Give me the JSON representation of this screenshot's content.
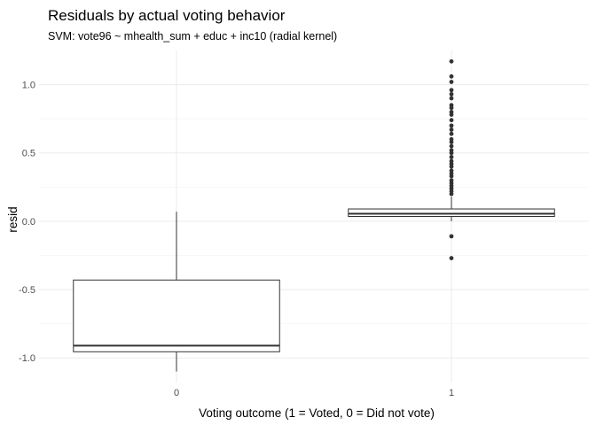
{
  "chart_data": {
    "type": "boxplot",
    "title": "Residuals by actual voting behavior",
    "subtitle": "SVM: vote96 ~ mhealth_sum + educ + inc10 (radial kernel)",
    "xlabel": "Voting outcome (1 = Voted, 0 = Did not vote)",
    "ylabel": "resid",
    "categories": [
      "0",
      "1"
    ],
    "ylim": [
      -1.18,
      1.25
    ],
    "yticks": [
      -1.0,
      -0.5,
      0.0,
      0.5,
      1.0
    ],
    "ytick_labels": [
      "-1.0",
      "-0.5",
      "0.0",
      "0.5",
      "1.0"
    ],
    "grid": true,
    "boxes": [
      {
        "category": "0",
        "whisker_low": -1.1,
        "q1": -0.955,
        "median": -0.91,
        "q3": -0.43,
        "whisker_high": 0.07,
        "outliers": []
      },
      {
        "category": "1",
        "whisker_low": 0.0,
        "q1": 0.035,
        "median": 0.055,
        "q3": 0.09,
        "whisker_high": 0.18,
        "outliers": [
          -0.27,
          -0.11,
          0.2,
          0.22,
          0.24,
          0.26,
          0.28,
          0.3,
          0.33,
          0.35,
          0.37,
          0.4,
          0.42,
          0.44,
          0.47,
          0.5,
          0.52,
          0.55,
          0.58,
          0.6,
          0.64,
          0.67,
          0.7,
          0.74,
          0.78,
          0.8,
          0.83,
          0.85,
          0.9,
          0.93,
          0.96,
          1.02,
          1.06,
          1.17
        ]
      }
    ],
    "colors": {
      "box_line": "#333333",
      "outlier": "#333333",
      "background": "#ffffff"
    }
  }
}
